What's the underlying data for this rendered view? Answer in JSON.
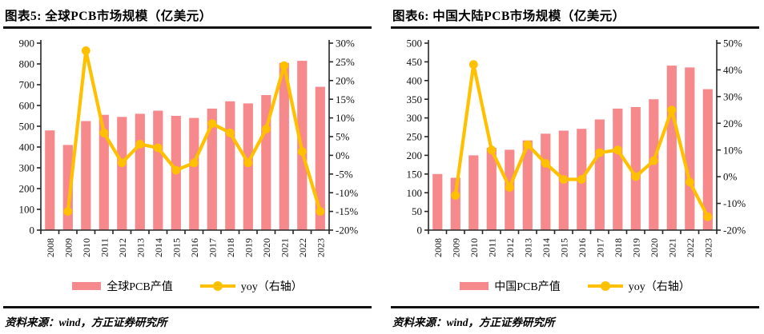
{
  "page": {
    "background": "#ffffff"
  },
  "colors": {
    "bar": "#F6898C",
    "line": "#FFC000",
    "axis": "#262626",
    "rule": "#111111",
    "text": "#111111"
  },
  "charts": [
    {
      "title": "图表5: 全球PCB市场规模（亿美元）",
      "source": "资料来源：wind，方正证券研究所",
      "legend": [
        {
          "swatch": "bar",
          "label": "全球PCB产值"
        },
        {
          "swatch": "line",
          "label": "yoy（右轴）"
        }
      ],
      "chart_data": {
        "type": "combo",
        "categories": [
          "2008",
          "2009",
          "2010",
          "2011",
          "2012",
          "2013",
          "2014",
          "2015",
          "2016",
          "2017",
          "2018",
          "2019",
          "2020",
          "2021",
          "2022",
          "2023"
        ],
        "series": [
          {
            "name": "全球PCB产值",
            "kind": "bar",
            "axis": "left",
            "values": [
              480,
              410,
              525,
              555,
              545,
              560,
              575,
              550,
              540,
              585,
              620,
              610,
              650,
              805,
              815,
              690
            ]
          },
          {
            "name": "yoy（右轴）",
            "kind": "line",
            "axis": "right",
            "values": [
              null,
              -15,
              28,
              6,
              -2,
              3,
              2,
              -4,
              -2,
              8.5,
              6,
              -2,
              7,
              24,
              1,
              -15
            ]
          }
        ],
        "left_axis": {
          "min": 0,
          "max": 900,
          "ticks": [
            0,
            100,
            200,
            300,
            400,
            500,
            600,
            700,
            800,
            900
          ]
        },
        "right_axis": {
          "min": -20,
          "max": 30,
          "ticks": [
            -20,
            -15,
            -10,
            -5,
            0,
            5,
            10,
            15,
            20,
            25,
            30
          ],
          "format": "percent"
        },
        "grid": false,
        "legend_position": "bottom"
      }
    },
    {
      "title": "图表6: 中国大陆PCB市场规模（亿美元）",
      "source": "资料来源：wind，方正证券研究所",
      "legend": [
        {
          "swatch": "bar",
          "label": "中国PCB产值"
        },
        {
          "swatch": "line",
          "label": "yoy（右轴）"
        }
      ],
      "chart_data": {
        "type": "combo",
        "categories": [
          "2008",
          "2009",
          "2010",
          "2011",
          "2012",
          "2013",
          "2014",
          "2015",
          "2016",
          "2017",
          "2018",
          "2019",
          "2020",
          "2021",
          "2022",
          "2023"
        ],
        "series": [
          {
            "name": "中国PCB产值",
            "kind": "bar",
            "axis": "left",
            "values": [
              150,
              140,
              200,
              220,
              215,
              240,
              258,
              266,
              271,
              296,
              325,
              329,
              350,
              440,
              435,
              377
            ]
          },
          {
            "name": "yoy（右轴）",
            "kind": "line",
            "axis": "right",
            "values": [
              null,
              -7,
              42,
              10,
              -4,
              12,
              5,
              -1,
              -1,
              9,
              10,
              0,
              6,
              25,
              -2,
              -15
            ]
          }
        ],
        "left_axis": {
          "min": 0,
          "max": 500,
          "ticks": [
            0,
            50,
            100,
            150,
            200,
            250,
            300,
            350,
            400,
            450,
            500
          ]
        },
        "right_axis": {
          "min": -20,
          "max": 50,
          "ticks": [
            -20,
            -10,
            0,
            10,
            20,
            30,
            40,
            50
          ],
          "format": "percent"
        },
        "grid": false,
        "legend_position": "bottom"
      }
    }
  ]
}
